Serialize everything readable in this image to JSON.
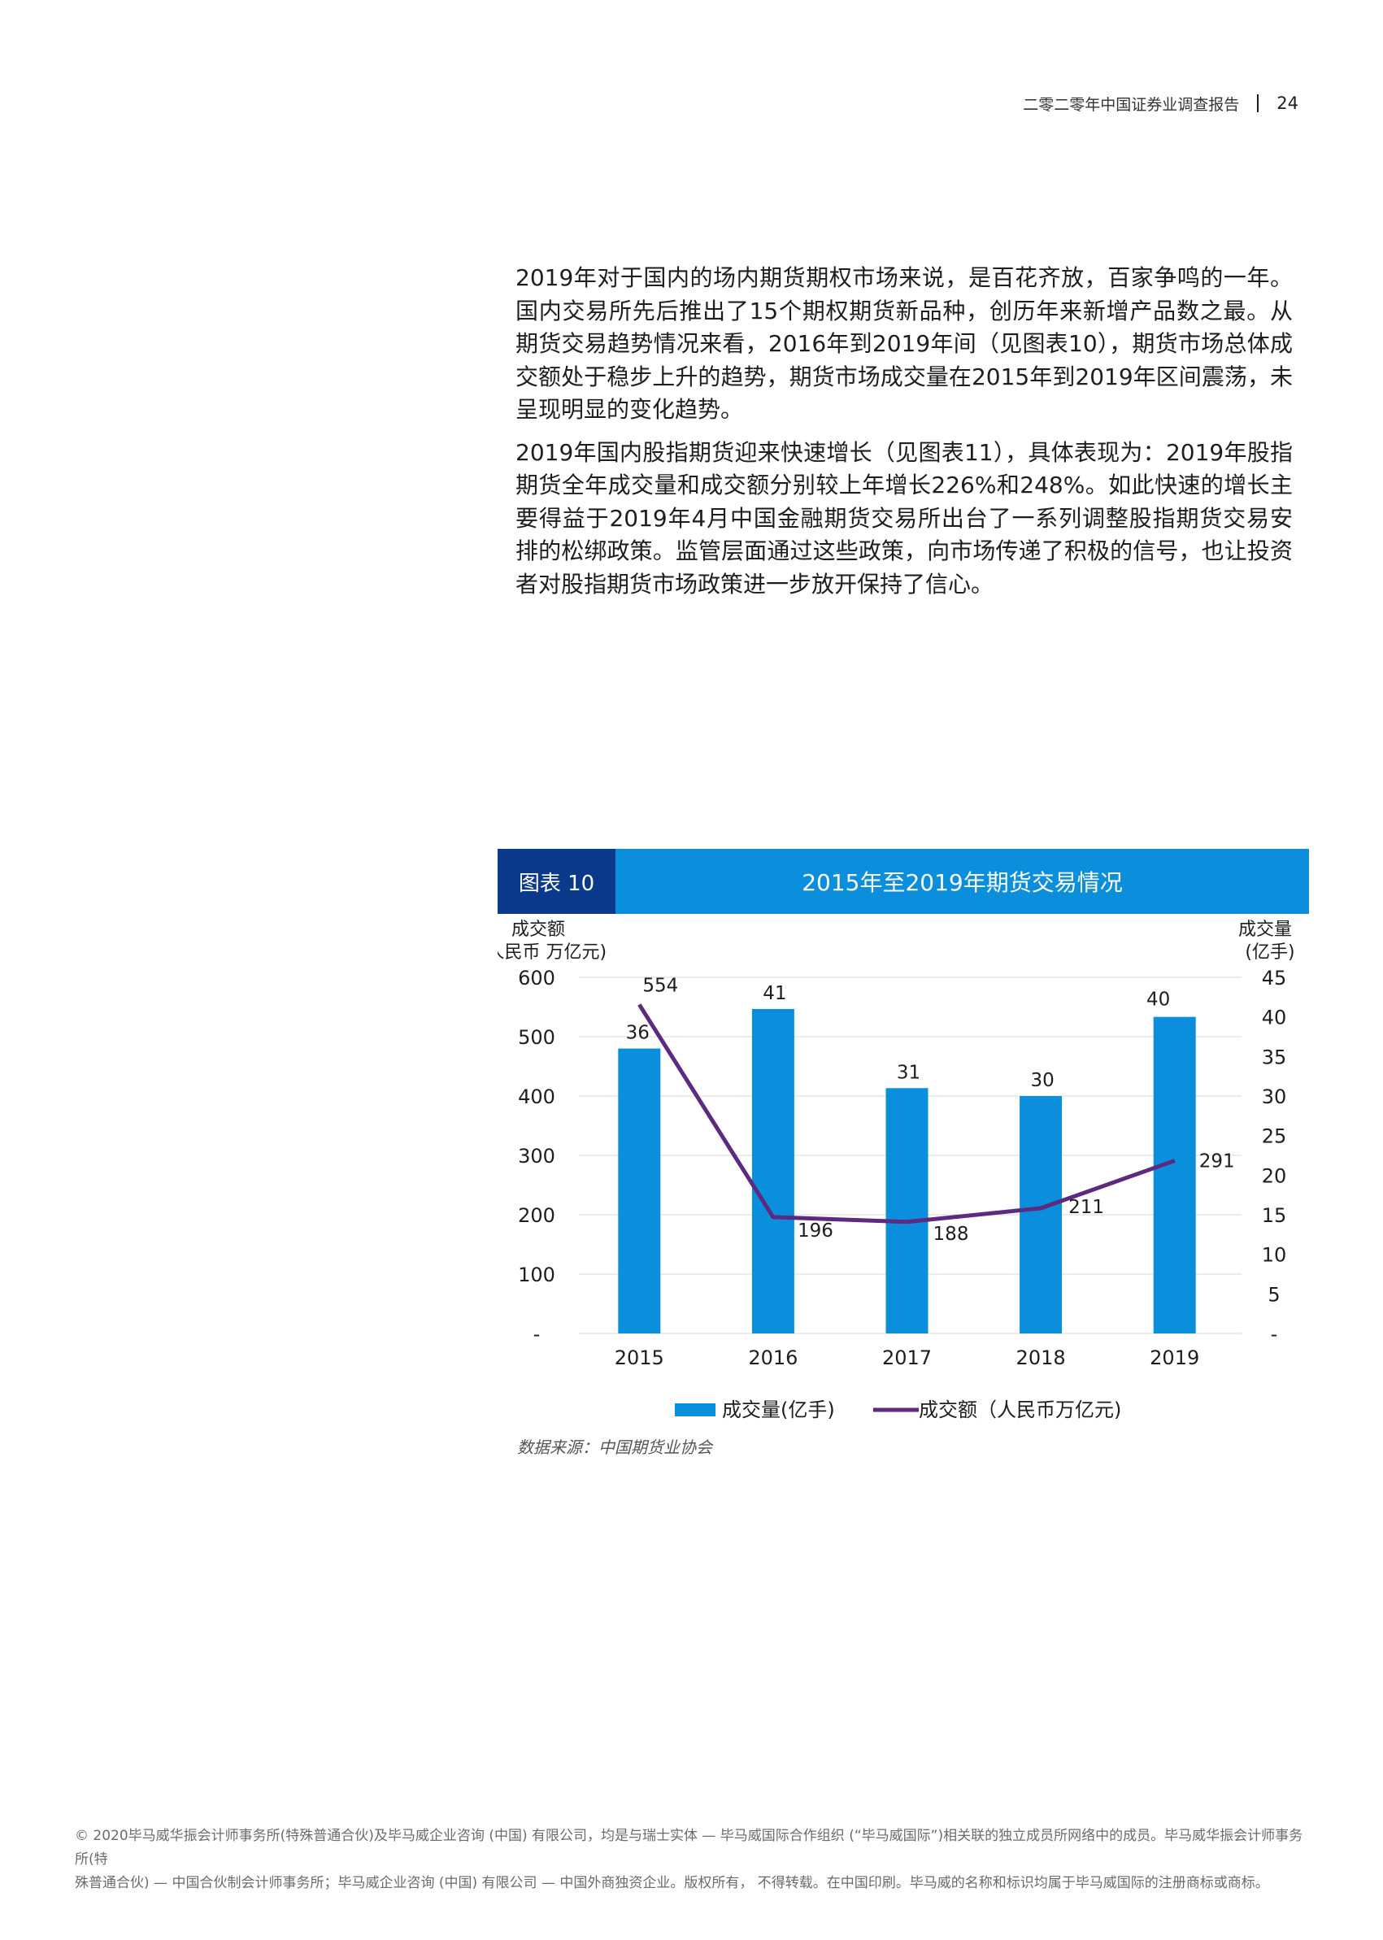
{
  "header": {
    "report_title": "二零二零年中国证券业调查报告",
    "page_number": "24"
  },
  "body": {
    "paragraph1": "2019年对于国内的场内期货期权市场来说，是百花齐放，百家争鸣的一年。国内交易所先后推出了15个期权期货新品种，创历年来新增产品数之最。从期货交易趋势情况来看，2016年到2019年间（见图表10），期货市场总体成交额处于稳步上升的趋势，期货市场成交量在2015年到2019年区间震荡，未呈现明显的变化趋势。",
    "paragraph2": "2019年国内股指期货迎来快速增长（见图表11），具体表现为：2019年股指期货全年成交量和成交额分别较上年增长226%和248%。如此快速的增长主要得益于2019年4月中国金融期货交易所出台了一系列调整股指期货交易安排的松绑政策。监管层面通过这些政策，向市场传递了积极的信号，也让投资者对股指期货市场政策进一步放开保持了信心。"
  },
  "figure": {
    "label": "图表 10",
    "title": "2015年至2019年期货交易情况",
    "source": "数据来源：中国期货业协会"
  },
  "chart_data": {
    "type": "bar+line",
    "categories": [
      "2015",
      "2016",
      "2017",
      "2018",
      "2019"
    ],
    "series": [
      {
        "name": "成交量(亿手)",
        "type": "bar",
        "axis": "right",
        "values": [
          36,
          41,
          31,
          30,
          40
        ],
        "color": "#0b8fdc"
      },
      {
        "name": "成交额（人民币万亿元)",
        "type": "line",
        "axis": "left",
        "values": [
          554,
          196,
          188,
          211,
          291
        ],
        "color": "#5c2a7e"
      }
    ],
    "y_left": {
      "label_line1": "成交额",
      "label_line2": "(人民币 万亿元)",
      "ticks": [
        "600",
        "500",
        "400",
        "300",
        "200",
        "100",
        "-"
      ],
      "ylim": [
        0,
        600
      ]
    },
    "y_right": {
      "label_line1": "成交量",
      "label_line2": "(亿手)",
      "ticks": [
        "45",
        "40",
        "35",
        "30",
        "25",
        "20",
        "15",
        "10",
        "5",
        "-"
      ],
      "ylim": [
        0,
        45
      ]
    },
    "grid": true,
    "legend_position": "bottom-center"
  },
  "footer": {
    "line1": "© 2020毕马威华振会计师事务所(特殊普通合伙)及毕马威企业咨询 (中国) 有限公司，均是与瑞士实体 — 毕马威国际合作组织 (“毕马威国际”)相关联的独立成员所网络中的成员。毕马威华振会计师事务所(特",
    "line2": "殊普通合伙) — 中国合伙制会计师事务所；毕马威企业咨询 (中国) 有限公司 — 中国外商独资企业。版权所有， 不得转载。在中国印刷。毕马威的名称和标识均属于毕马威国际的注册商标或商标。"
  }
}
